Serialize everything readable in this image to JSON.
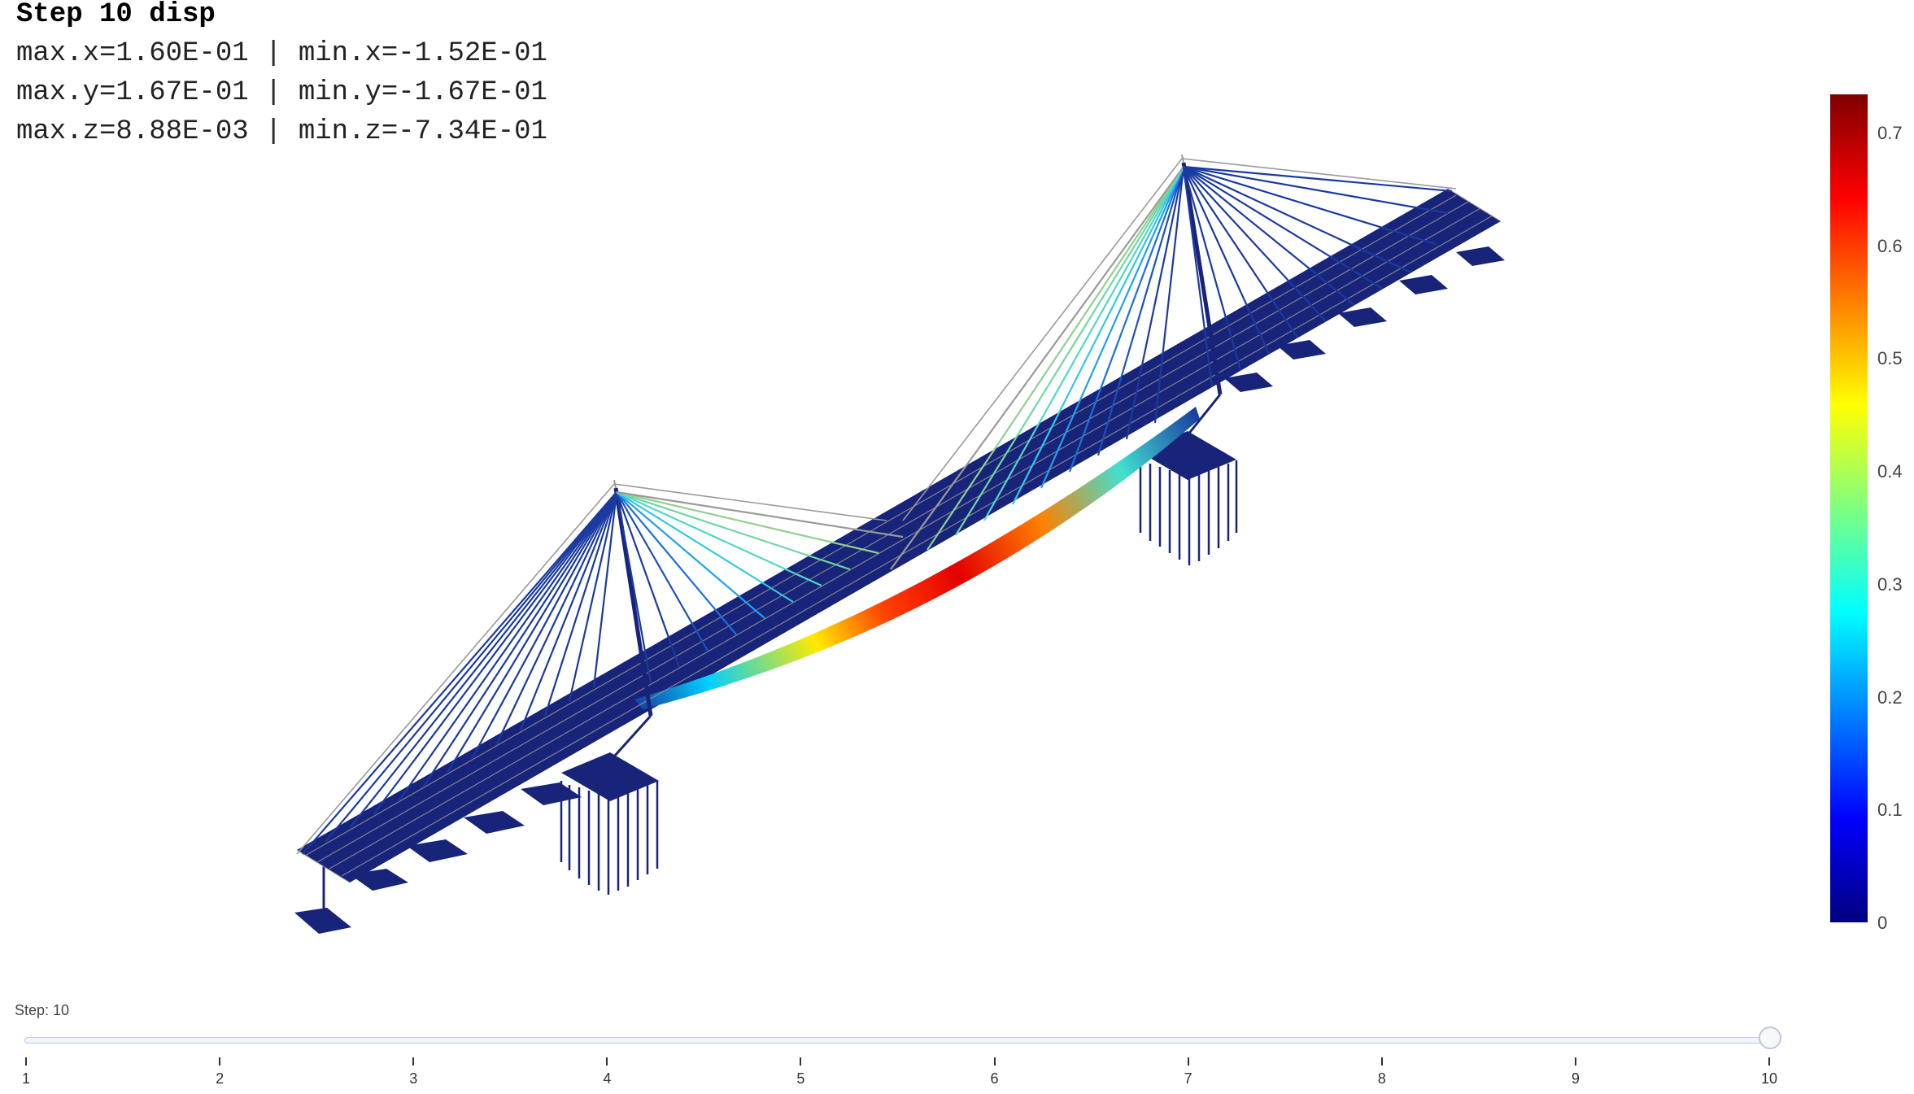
{
  "plot": {
    "title": "Step 10 disp",
    "stats": [
      "max.x=1.60E-01 | min.x=-1.52E-01",
      "max.y=1.67E-01 | min.y=-1.67E-01",
      "max.z=8.88E-03 | min.z=-7.34E-01"
    ]
  },
  "colorbar": {
    "range": [
      0,
      0.734
    ],
    "ticks": [
      "0",
      "0.1",
      "0.2",
      "0.3",
      "0.4",
      "0.5",
      "0.6",
      "0.7"
    ],
    "colorscale": [
      "#00007f",
      "#0000ff",
      "#007fff",
      "#00ffff",
      "#7fff7f",
      "#ffff00",
      "#ff7f00",
      "#ff0000",
      "#7f0000"
    ]
  },
  "slider": {
    "label": "Step: 10",
    "steps": [
      "1",
      "2",
      "3",
      "4",
      "5",
      "6",
      "7",
      "8",
      "9",
      "10"
    ],
    "active": 10
  },
  "colors": {
    "deck": "#18247a",
    "cable": "#1a3aa0",
    "outline": "#9a9a9a"
  }
}
